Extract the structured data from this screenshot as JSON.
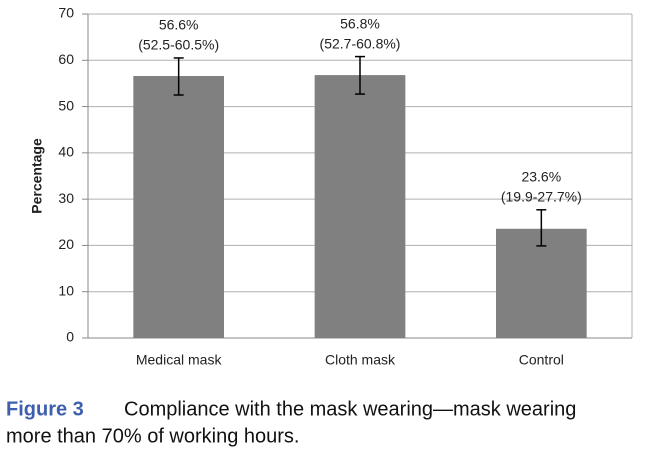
{
  "chart_data": {
    "type": "bar",
    "categories": [
      "Medical mask",
      "Cloth mask",
      "Control"
    ],
    "values": [
      56.6,
      56.8,
      23.6
    ],
    "value_labels": [
      "56.6%",
      "56.8%",
      "23.6%"
    ],
    "lower": [
      52.5,
      52.7,
      19.9
    ],
    "upper": [
      60.5,
      60.8,
      27.7
    ],
    "ci_labels": [
      "(52.5-60.5%)",
      "(52.7-60.8%)",
      "(19.9-27.7%)"
    ],
    "color": "#808080",
    "ylabel": "Percentage",
    "ylim": [
      0,
      70
    ],
    "yticks": [
      0,
      10,
      20,
      30,
      40,
      50,
      60,
      70
    ],
    "grid": true
  },
  "caption": {
    "label": "Figure 3",
    "text_lines": [
      "Compliance with the mask wearing—mask wearing",
      "more than 70% of working hours."
    ]
  }
}
